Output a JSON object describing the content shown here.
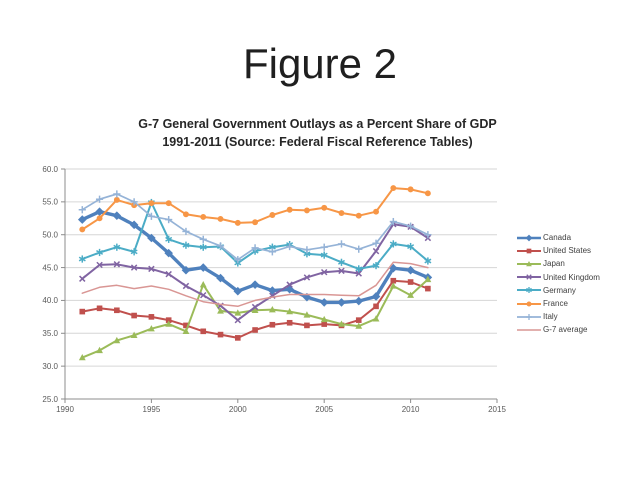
{
  "slide": {
    "title": "Figure 2"
  },
  "chart": {
    "title_line1": "G-7 General Government Outlays as a Percent Share of GDP",
    "title_line2": "1991-2011 (Source: Federal Fiscal Reference Tables)"
  },
  "chart_data": {
    "type": "line",
    "title": "G-7 General Government Outlays as a Percent Share of GDP 1991-2011 (Source: Federal Fiscal Reference Tables)",
    "xlabel": "",
    "ylabel": "",
    "grid": "horizontal",
    "legend_position": "right",
    "xlim": [
      1990,
      2015
    ],
    "ylim": [
      25,
      60
    ],
    "ytick_step": 5,
    "ytick_labels": [
      "25.0",
      "30.0",
      "35.0",
      "40.0",
      "45.0",
      "50.0",
      "55.0",
      "60.0"
    ],
    "xticks": [
      1990,
      1995,
      2000,
      2005,
      2010,
      2015
    ],
    "x": [
      1991,
      1992,
      1993,
      1994,
      1995,
      1996,
      1997,
      1998,
      1999,
      2000,
      2001,
      2002,
      2003,
      2004,
      2005,
      2006,
      2007,
      2008,
      2009,
      2010,
      2011
    ],
    "series": [
      {
        "name": "Canada",
        "slug": "canada",
        "color": "#4F81BD",
        "marker": "diamond",
        "line_width": 3.4,
        "values": [
          52.3,
          53.5,
          52.9,
          51.5,
          49.5,
          47.2,
          44.6,
          45.0,
          43.4,
          41.4,
          42.4,
          41.5,
          41.7,
          40.5,
          39.7,
          39.7,
          39.9,
          40.6,
          44.9,
          44.6,
          43.5
        ]
      },
      {
        "name": "United States",
        "slug": "united-states",
        "color": "#C0504D",
        "marker": "square",
        "line_width": 2,
        "values": [
          38.3,
          38.8,
          38.5,
          37.7,
          37.5,
          37.0,
          36.2,
          35.3,
          34.8,
          34.3,
          35.5,
          36.3,
          36.6,
          36.2,
          36.4,
          36.2,
          37.0,
          39.1,
          43.0,
          42.8,
          41.8
        ]
      },
      {
        "name": "Japan",
        "slug": "japan",
        "color": "#9BBB59",
        "marker": "triangle",
        "line_width": 2,
        "values": [
          31.3,
          32.4,
          33.9,
          34.7,
          35.7,
          36.4,
          35.3,
          42.4,
          38.4,
          38.1,
          38.5,
          38.6,
          38.3,
          37.8,
          37.1,
          36.4,
          36.1,
          37.2,
          42.2,
          40.8,
          43.2
        ]
      },
      {
        "name": "United Kingdom",
        "slug": "united-kingdom",
        "color": "#8064A2",
        "marker": "x",
        "line_width": 2,
        "values": [
          43.3,
          45.4,
          45.5,
          45.0,
          44.8,
          44.0,
          42.2,
          40.8,
          39.2,
          37.0,
          39.0,
          40.7,
          42.4,
          43.5,
          44.3,
          44.5,
          44.1,
          47.5,
          51.6,
          51.2,
          49.5
        ]
      },
      {
        "name": "Germany",
        "slug": "germany",
        "color": "#4BACC6",
        "marker": "star",
        "line_width": 2,
        "values": [
          46.3,
          47.3,
          48.1,
          47.4,
          54.9,
          49.3,
          48.4,
          48.1,
          48.2,
          45.7,
          47.5,
          48.1,
          48.5,
          47.1,
          46.9,
          45.8,
          44.8,
          45.3,
          48.6,
          48.2,
          46.0
        ]
      },
      {
        "name": "France",
        "slug": "france",
        "color": "#F79646",
        "marker": "circle",
        "line_width": 2,
        "values": [
          50.8,
          52.5,
          55.3,
          54.5,
          54.8,
          54.8,
          53.1,
          52.7,
          52.4,
          51.8,
          51.9,
          53.0,
          53.8,
          53.7,
          54.1,
          53.3,
          52.9,
          53.5,
          57.1,
          56.9,
          56.3
        ]
      },
      {
        "name": "Italy",
        "slug": "italy",
        "color": "#95B3D7",
        "marker": "plus",
        "line_width": 1.7,
        "values": [
          53.8,
          55.4,
          56.2,
          55.0,
          52.8,
          52.3,
          50.5,
          49.3,
          48.3,
          46.2,
          48.0,
          47.4,
          48.2,
          47.7,
          48.1,
          48.6,
          47.8,
          48.7,
          52.0,
          51.3,
          50.0
        ]
      },
      {
        "name": "G-7 average",
        "slug": "g7-average",
        "color": "#D99694",
        "marker": "none",
        "line_width": 1.5,
        "values": [
          41.1,
          42.0,
          42.3,
          41.8,
          42.2,
          41.7,
          40.7,
          39.8,
          39.4,
          39.1,
          40.0,
          40.5,
          40.9,
          40.9,
          40.9,
          40.8,
          40.7,
          42.3,
          45.8,
          45.6,
          45.0
        ]
      }
    ]
  },
  "colors": {
    "grid_line": "#D6D6D6",
    "axis_line": "#8C8C8C",
    "tick_text": "#595959",
    "title_text": "#262626",
    "legend_text": "#404040"
  }
}
